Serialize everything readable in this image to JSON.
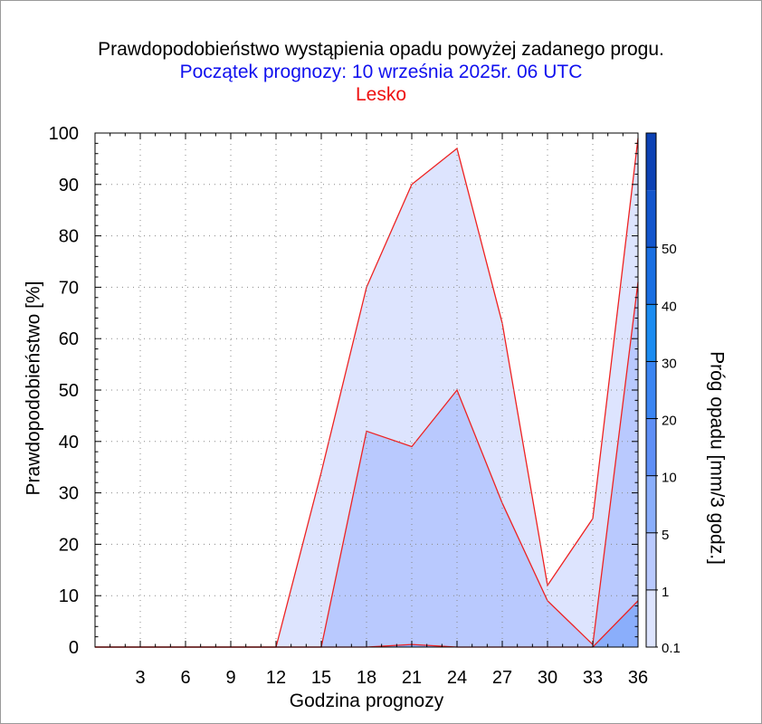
{
  "titles": {
    "main": "Prawdopodobieństwo wystąpienia opadu powyżej zadanego progu.",
    "subtitle": "Początek prognozy: 10 września 2025r. 06 UTC",
    "station": "Lesko"
  },
  "colors": {
    "title": "#000000",
    "subtitle": "#1010ee",
    "station": "#ee1111",
    "outline": "#ee2222",
    "grid": "#888888"
  },
  "chart_data": {
    "type": "area",
    "xlabel": "Godzina prognozy",
    "ylabel": "Prawdopodobieństwo [%]",
    "xlim": [
      0,
      36
    ],
    "ylim": [
      0,
      100
    ],
    "x_ticks": [
      3,
      6,
      9,
      12,
      15,
      18,
      21,
      24,
      27,
      30,
      33,
      36
    ],
    "y_ticks": [
      0,
      10,
      20,
      30,
      40,
      50,
      60,
      70,
      80,
      90,
      100
    ],
    "grid": true,
    "x": [
      0,
      3,
      6,
      9,
      12,
      15,
      18,
      21,
      24,
      27,
      30,
      33,
      36
    ],
    "series": [
      {
        "threshold": "0.1",
        "color": "#dde4fe",
        "values": [
          0,
          0,
          0,
          0,
          0,
          34,
          70,
          90,
          97,
          63,
          12,
          25,
          99
        ]
      },
      {
        "threshold": "1",
        "color": "#b9c9fe",
        "values": [
          0,
          0,
          0,
          0,
          0,
          0,
          42,
          39,
          50,
          28,
          9,
          0.5,
          71
        ]
      },
      {
        "threshold": "5",
        "color": "#8aaefb",
        "values": [
          0,
          0,
          0,
          0,
          0,
          0,
          0,
          0.5,
          0,
          0,
          0,
          0,
          9
        ]
      }
    ],
    "colorbar": {
      "title": "Próg opadu [mm/3 godz.]",
      "labels": [
        "0.1",
        "1",
        "5",
        "10",
        "20",
        "30",
        "40",
        "50"
      ],
      "colors": [
        "#dde4fe",
        "#b9c9fe",
        "#8aaefb",
        "#5f8ff6",
        "#3b85f2",
        "#1b8cf1",
        "#1a6fe2",
        "#1356cd",
        "#0d42b4"
      ]
    }
  }
}
